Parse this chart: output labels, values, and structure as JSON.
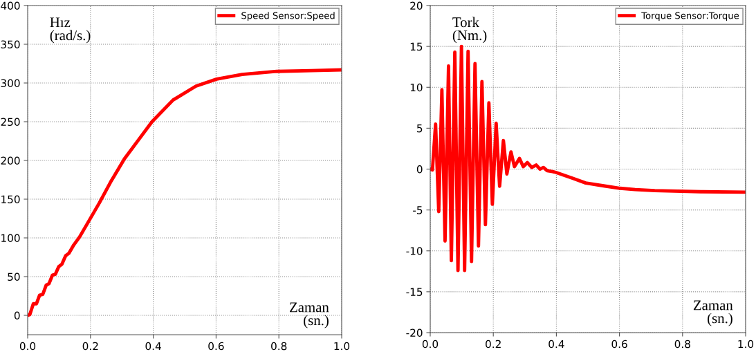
{
  "chart_data": [
    {
      "type": "line",
      "xlabel": "Zaman\n(sn.)",
      "ylabel": "Hız\n(rad/s.)",
      "xlim": [
        0.0,
        1.0
      ],
      "xticks": [
        {
          "value": 0,
          "label": "0.0"
        },
        {
          "value": 0.2,
          "label": "0.2"
        },
        {
          "value": 0.4,
          "label": "0.4"
        },
        {
          "value": 0.6,
          "label": "0.6"
        },
        {
          "value": 0.8,
          "label": "0.8"
        },
        {
          "value": 1,
          "label": "1.0"
        }
      ],
      "ylim": [
        -25,
        400
      ],
      "yticks": [
        0,
        50,
        100,
        150,
        200,
        250,
        300,
        350,
        400
      ],
      "grid": true,
      "legend": "top right",
      "line_style": "solid",
      "marker": "none",
      "series": [
        {
          "name": "Speed Sensor:Speed",
          "color": "#ff0000",
          "x": [
            0,
            0.007,
            0.018,
            0.028,
            0.038,
            0.048,
            0.059,
            0.068,
            0.079,
            0.088,
            0.099,
            0.109,
            0.121,
            0.131,
            0.147,
            0.165,
            0.198,
            0.228,
            0.264,
            0.308,
            0.352,
            0.396,
            0.463,
            0.536,
            0.602,
            0.683,
            0.793,
            0.903,
            1.0
          ],
          "values": [
            0,
            1,
            15,
            15,
            26,
            27,
            39,
            41,
            52,
            53,
            63,
            66,
            77,
            80,
            91,
            101,
            124,
            145,
            172,
            202,
            226,
            250,
            278,
            296,
            305,
            311,
            315,
            316,
            317
          ]
        }
      ]
    },
    {
      "type": "line",
      "xlabel": "Zaman\n(sn.)",
      "ylabel": "Tork\n(Nm.)",
      "xlim": [
        0.0,
        1.0
      ],
      "xticks": [
        {
          "value": 0,
          "label": "0.0"
        },
        {
          "value": 0.2,
          "label": "0.2"
        },
        {
          "value": 0.4,
          "label": "0.4"
        },
        {
          "value": 0.6,
          "label": "0.6"
        },
        {
          "value": 0.8,
          "label": "0.8"
        },
        {
          "value": 1,
          "label": "1.0"
        }
      ],
      "ylim": [
        -20,
        20
      ],
      "yticks": [
        -20,
        -15,
        -10,
        -5,
        0,
        5,
        10,
        15,
        20
      ],
      "grid": true,
      "legend": "top right",
      "line_style": "solid",
      "marker": "none",
      "series": [
        {
          "name": "Torque Sensor:Torque",
          "color": "#ff0000",
          "x": [
            0,
            0.007,
            0.017,
            0.027,
            0.037,
            0.047,
            0.058,
            0.067,
            0.078,
            0.088,
            0.099,
            0.109,
            0.12,
            0.131,
            0.142,
            0.153,
            0.164,
            0.175,
            0.186,
            0.197,
            0.209,
            0.22,
            0.232,
            0.243,
            0.256,
            0.267,
            0.283,
            0.295,
            0.308,
            0.322,
            0.336,
            0.348,
            0.359,
            0.371,
            0.388,
            0.398,
            0.45,
            0.493,
            0.55,
            0.602,
            0.65,
            0.712,
            0.858,
            1.0
          ],
          "values": [
            0,
            -0.1,
            5.5,
            -5.2,
            9.7,
            -8.8,
            12.6,
            -11.2,
            14.3,
            -12.4,
            15.0,
            -12.4,
            14.4,
            -11.3,
            12.9,
            -9.4,
            10.7,
            -6.8,
            8.1,
            -4.3,
            5.6,
            -2.1,
            3.5,
            -0.6,
            2.1,
            0.3,
            1.3,
            0.3,
            0.8,
            0.2,
            0.5,
            0,
            0.2,
            -0.2,
            -0.3,
            -0.4,
            -1.1,
            -1.7,
            -2.05,
            -2.35,
            -2.5,
            -2.63,
            -2.77,
            -2.82
          ]
        }
      ]
    }
  ]
}
